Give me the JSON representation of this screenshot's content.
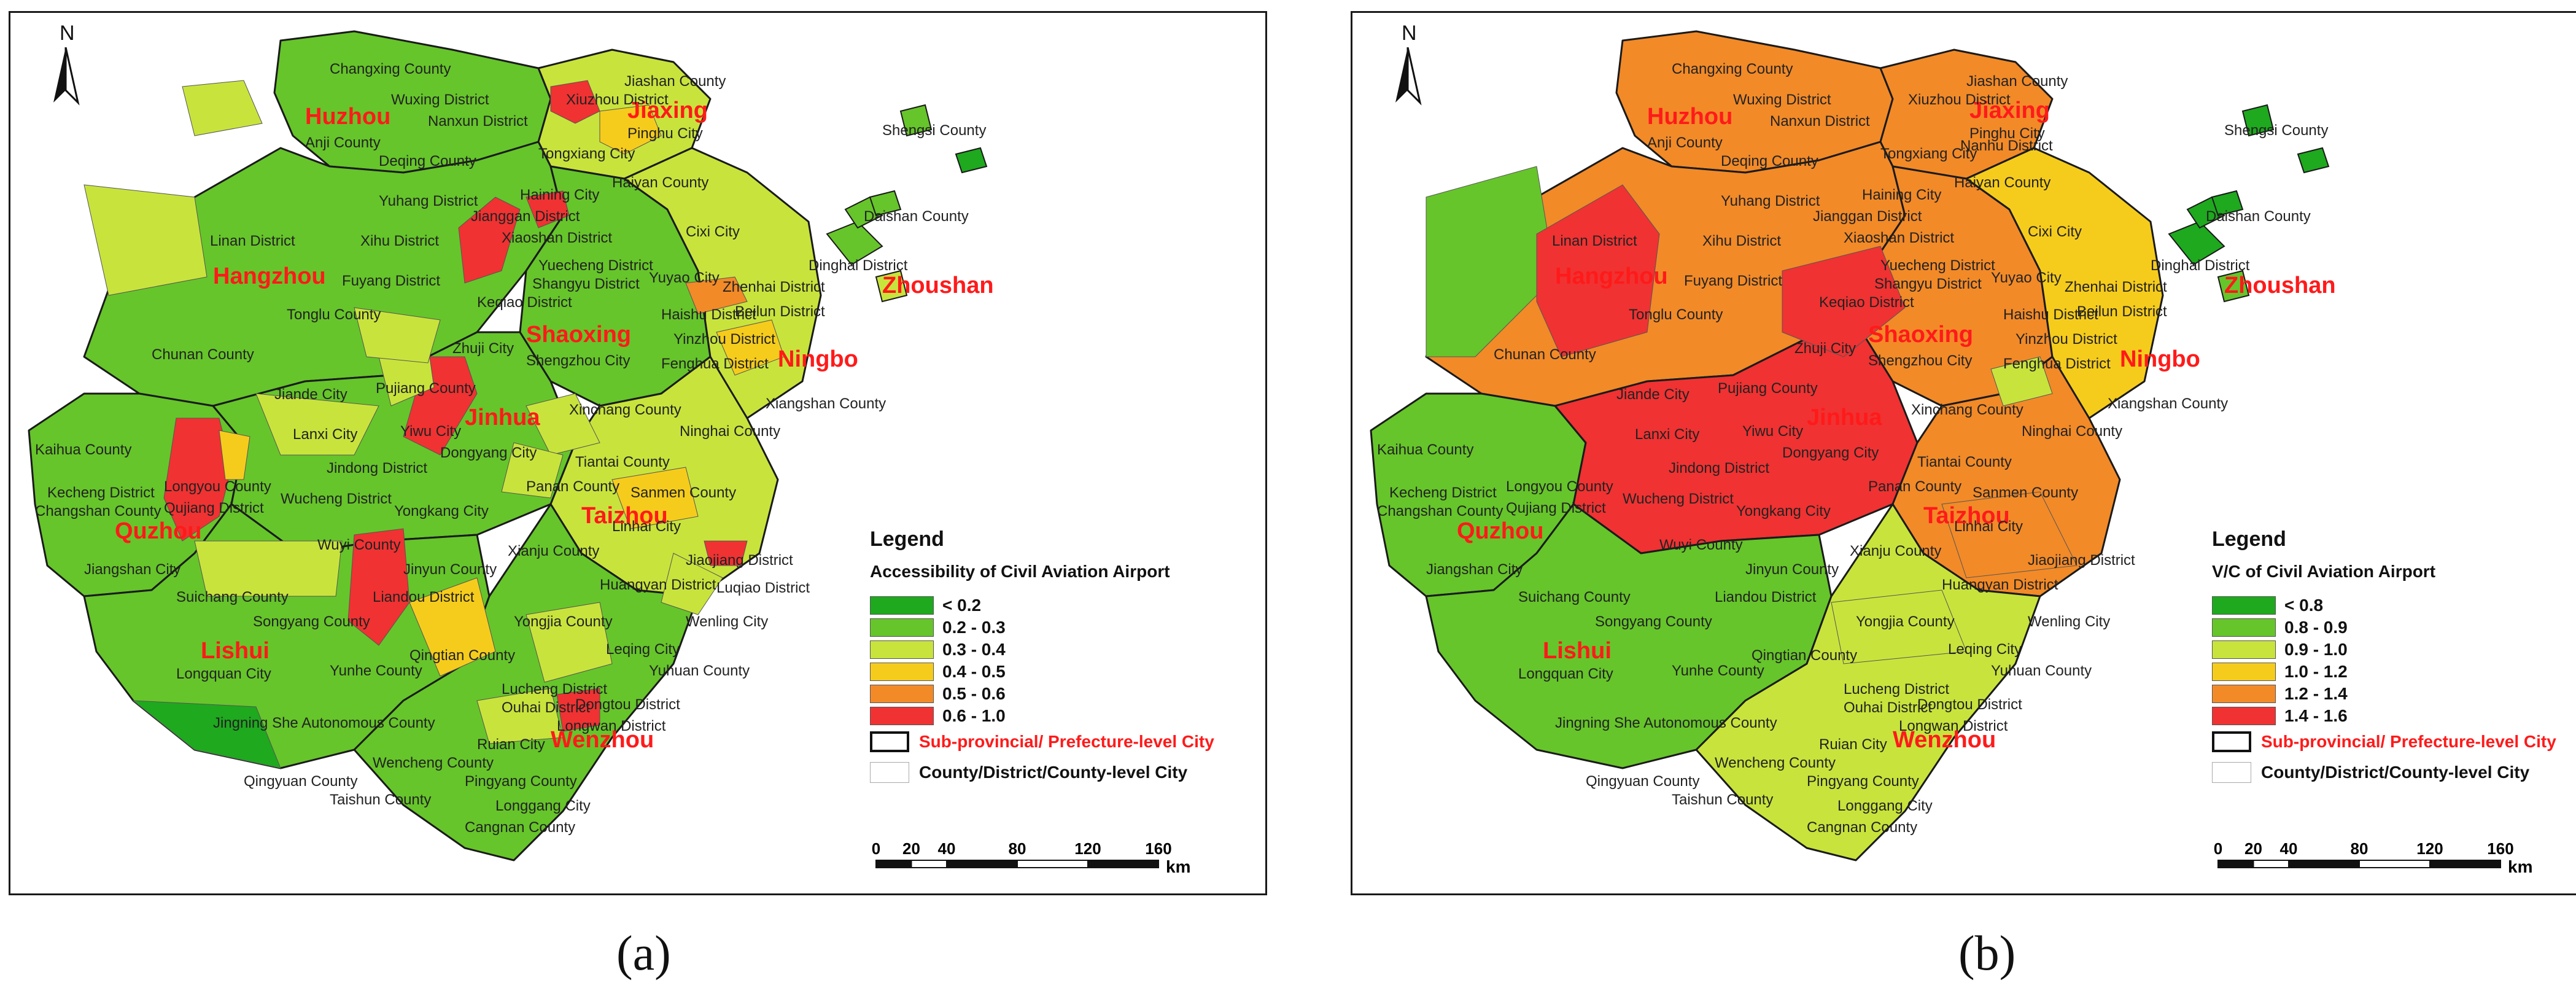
{
  "panels": [
    {
      "id": "a",
      "caption": "(a)",
      "north_label": "N",
      "legend": {
        "title": "Legend",
        "subtitle": "Accessibility  of Civil Aviation Airport",
        "classes": [
          {
            "label": "< 0.2",
            "color": "#1ea91e"
          },
          {
            "label": "0.2 - 0.3",
            "color": "#66c52a"
          },
          {
            "label": "0.3 - 0.4",
            "color": "#c8e43c"
          },
          {
            "label": "0.4 - 0.5",
            "color": "#f6cc1c"
          },
          {
            "label": "0.5 - 0.6",
            "color": "#f28a28"
          },
          {
            "label": "0.6 - 1.0",
            "color": "#f03232"
          }
        ],
        "boundary_city": "Sub-provincial/ Prefecture-level City",
        "boundary_county": "County/District/County-level City",
        "scale_ticks": [
          "0",
          "20",
          "40",
          "80",
          "120",
          "160"
        ],
        "scale_unit": "km"
      },
      "city_labels": [
        "Huzhou",
        "Jiaxing",
        "Hangzhou",
        "Shaoxing",
        "Zhoushan",
        "Ningbo",
        "Jinhua",
        "Quzhou",
        "Taizhou",
        "Lishui",
        "Wenzhou"
      ],
      "county_labels": [
        "Changxing County",
        "Jiashan County",
        "Wuxing District",
        "Xiuzhou District",
        "Nanxun District",
        "Pinghu City",
        "Anji County",
        "Deqing County",
        "Tongxiang City",
        "Haiyan County",
        "Shengsi County",
        "Yuhang District",
        "Jianggan District",
        "Haining City",
        "Linan District",
        "Xihu District",
        "Xiaoshan District",
        "Cixi City",
        "Daishan County",
        "Fuyang District",
        "Yuecheng District",
        "Yuyao City",
        "Shangyu District",
        "Zhenhai District",
        "Dinghai District",
        "Keqiao District",
        "Haishu District",
        "Beilun District",
        "Tonglu County",
        "Zhuji City",
        "Shengzhou City",
        "Yinzhou District",
        "Chunan County",
        "Fenghua District",
        "Jiande City",
        "Pujiang County",
        "Xiangshan County",
        "Xinchang County",
        "Kaihua County",
        "Lanxi City",
        "Yiwu City",
        "Ninghai County",
        "Dongyang City",
        "Tiantai County",
        "Jindong District",
        "Longyou County",
        "Panan County",
        "Kecheng District",
        "Qujiang District",
        "Changshan County",
        "Wucheng District",
        "Yongkang City",
        "Sanmen County",
        "Linhai City",
        "Wuyi County",
        "Jinyun County",
        "Xianju County",
        "Jiangshan City",
        "Jiaojiang District",
        "Suichang County",
        "Liandou District",
        "Huangyan District",
        "Luqiao District",
        "Songyang County",
        "Yongjia County",
        "Wenling City",
        "Leqing City",
        "Qingtian County",
        "Yunhe County",
        "Longquan City",
        "Yuhuan County",
        "Lucheng District",
        "Ouhai District",
        "Dongtou District",
        "Jingning She Autonomous County",
        "Longwan District",
        "Ruian City",
        "Wencheng County",
        "Qingyuan County",
        "Taishun County",
        "Pingyang County",
        "Longgang City",
        "Cangnan County"
      ]
    },
    {
      "id": "b",
      "caption": "(b)",
      "north_label": "N",
      "legend": {
        "title": "Legend",
        "subtitle": "V/C of Civil Aviation Airport",
        "classes": [
          {
            "label": "< 0.8",
            "color": "#1ea91e"
          },
          {
            "label": "0.8 - 0.9",
            "color": "#66c52a"
          },
          {
            "label": "0.9 - 1.0",
            "color": "#c8e43c"
          },
          {
            "label": "1.0 - 1.2",
            "color": "#f6cc1c"
          },
          {
            "label": "1.2 - 1.4",
            "color": "#f28a28"
          },
          {
            "label": "1.4 - 1.6",
            "color": "#f03232"
          }
        ],
        "boundary_city": "Sub-provincial/ Prefecture-level City",
        "boundary_county": "County/District/County-level City",
        "scale_ticks": [
          "0",
          "20",
          "40",
          "80",
          "120",
          "160"
        ],
        "scale_unit": "km"
      },
      "city_labels": [
        "Huzhou",
        "Jiaxing",
        "Hangzhou",
        "Shaoxing",
        "Zhoushan",
        "Ningbo",
        "Jinhua",
        "Quzhou",
        "Taizhou",
        "Lishui",
        "Wenzhou"
      ],
      "county_labels": [
        "Changxing County",
        "Jiashan County",
        "Wuxing District",
        "Xiuzhou District",
        "Nanxun District",
        "Pinghu City",
        "Anji County",
        "Deqing County",
        "Tongxiang City",
        "Nanhu District",
        "Haiyan County",
        "Shengsi County",
        "Yuhang District",
        "Jianggan District",
        "Haining City",
        "Linan District",
        "Xihu District",
        "Xiaoshan District",
        "Cixi City",
        "Daishan County",
        "Fuyang District",
        "Yuecheng District",
        "Yuyao City",
        "Shangyu District",
        "Zhenhai District",
        "Dinghai District",
        "Keqiao District",
        "Haishu District",
        "Beilun District",
        "Tonglu County",
        "Zhuji City",
        "Shengzhou City",
        "Yinzhou District",
        "Chunan County",
        "Fenghua District",
        "Jiande City",
        "Pujiang County",
        "Xiangshan County",
        "Xinchang County",
        "Kaihua County",
        "Lanxi City",
        "Yiwu City",
        "Ninghai County",
        "Dongyang City",
        "Tiantai County",
        "Jindong District",
        "Longyou County",
        "Panan County",
        "Kecheng District",
        "Qujiang District",
        "Changshan County",
        "Wucheng District",
        "Yongkang City",
        "Sanmen County",
        "Linhai City",
        "Wuyi County",
        "Jinyun County",
        "Xianju County",
        "Jiangshan City",
        "Jiaojiang District",
        "Suichang County",
        "Liandou District",
        "Huangyan District",
        "Songyang County",
        "Yongjia County",
        "Wenling City",
        "Leqing City",
        "Qingtian County",
        "Yunhe County",
        "Longquan City",
        "Yuhuan County",
        "Lucheng District",
        "Ouhai District",
        "Dongtou District",
        "Jingning She Autonomous County",
        "Longwan District",
        "Ruian City",
        "Wencheng County",
        "Qingyuan County",
        "Taishun County",
        "Pingyang County",
        "Longgang City",
        "Cangnan County"
      ]
    }
  ]
}
